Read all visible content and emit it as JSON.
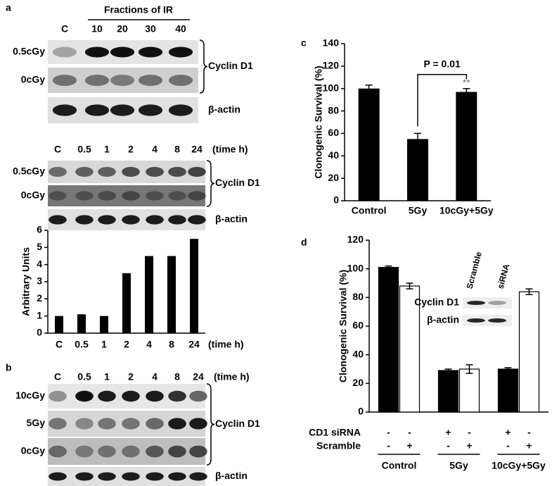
{
  "panel_labels": [
    "a",
    "b",
    "c",
    "d"
  ],
  "blot_a1": {
    "header": "Fractions of IR",
    "lanes": [
      "C",
      "10",
      "20",
      "30",
      "40"
    ],
    "rows": [
      "0.5cGy",
      "0cGy"
    ],
    "protein": "Cyclin D1",
    "control": "β-actin"
  },
  "blot_a2": {
    "lanes": [
      "C",
      "0.5",
      "1",
      "2",
      "4",
      "8",
      "24"
    ],
    "unit": "(time h)",
    "rows": [
      "0.5cGy",
      "0cGy"
    ],
    "protein": "Cyclin D1",
    "control": "β-actin"
  },
  "blot_b": {
    "lanes": [
      "C",
      "0.5",
      "1",
      "2",
      "4",
      "8",
      "24"
    ],
    "unit": "(time h)",
    "rows": [
      "10cGy",
      "5Gy",
      "0cGy"
    ],
    "protein": "Cyclin D1",
    "control": "β-actin"
  },
  "inset_blot": {
    "lanes": [
      "Scramble",
      "siRNA"
    ],
    "rows": [
      "Cyclin D1",
      "β-actin"
    ]
  },
  "chart_data": [
    {
      "type": "bar",
      "y_label": "Arbitrary Units",
      "x_unit": "(time h)",
      "categories": [
        "C",
        "0.5",
        "1",
        "2",
        "4",
        "8",
        "24"
      ],
      "values": [
        1,
        1.1,
        1,
        3.5,
        4.5,
        4.5,
        5.5
      ],
      "color": "#000000",
      "ylim": [
        0,
        6
      ],
      "yticks": [
        0,
        1,
        2,
        3,
        4,
        5,
        6
      ]
    },
    {
      "type": "errorbar",
      "y_label": "Clonogenic Survival (%)",
      "categories": [
        "Control",
        "5Gy",
        "10cGy+5Gy"
      ],
      "values": [
        100,
        55,
        97
      ],
      "errors": [
        3,
        5,
        3
      ],
      "color": "#000000",
      "ylim": [
        0,
        140
      ],
      "yticks": [
        0,
        20,
        40,
        60,
        80,
        100,
        120,
        140
      ],
      "annotations": [
        "P = 0.01",
        "**"
      ]
    },
    {
      "type": "grouped",
      "y_label": "Clonogenic Survival (%)",
      "categories": [
        "Control",
        "5Gy",
        "10cGy+5Gy"
      ],
      "ylim": [
        0,
        120
      ],
      "yticks": [
        0,
        20,
        40,
        60,
        80,
        100,
        120
      ],
      "series": [
        {
          "name": "CD1 siRNA",
          "color": "#000000",
          "values": [
            101,
            29,
            30
          ],
          "errors": [
            1,
            1,
            1
          ],
          "signs": [
            "-",
            "-",
            "+",
            "-",
            "+",
            "-"
          ]
        },
        {
          "name": "Scramble",
          "color": "#ffffff",
          "values": [
            88,
            30,
            84
          ],
          "errors": [
            2,
            3,
            2
          ],
          "signs": [
            "-",
            "+",
            "-",
            "+",
            "-",
            "+"
          ]
        }
      ]
    }
  ]
}
